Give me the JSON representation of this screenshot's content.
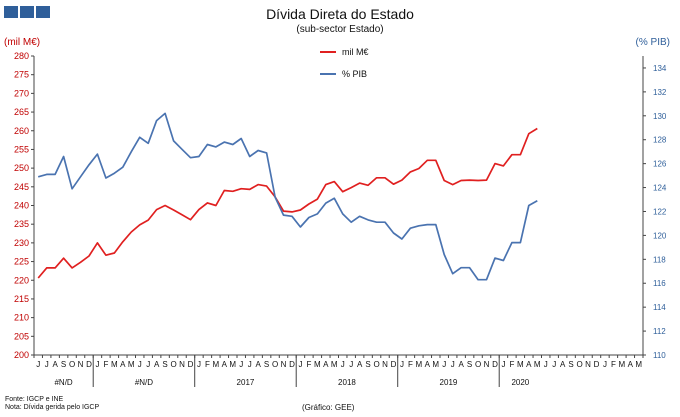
{
  "header": {
    "title": "Dívida Direta do Estado",
    "subtitle": "(sub-sector Estado)"
  },
  "logo_color": "#2f5f9a",
  "footer": {
    "source": "Fonte: IGCP e INE",
    "note": "Nota: Dívida gerida pelo IGCP",
    "credit": "(Gráfico: GEE)"
  },
  "chart_data": {
    "type": "line",
    "title": "Dívida Direta do Estado",
    "subtitle": "(sub-sector Estado)",
    "ylabel_left": "(mil M€)",
    "ylabel_right": "(% PIB)",
    "ylim_left": [
      200,
      280
    ],
    "ylim_right": [
      110,
      135
    ],
    "yticks_left": [
      "200",
      "205",
      "210",
      "215",
      "220",
      "225",
      "230",
      "235",
      "240",
      "245",
      "250",
      "255",
      "260",
      "265",
      "270",
      "275",
      "280"
    ],
    "yticks_right": [
      "110",
      "112",
      "114",
      "116",
      "118",
      "120",
      "122",
      "124",
      "126",
      "128",
      "130",
      "132",
      "134"
    ],
    "legend_position": "top-center",
    "month_labels": [
      "J",
      "J",
      "A",
      "S",
      "O",
      "N",
      "D",
      "J",
      "F",
      "M",
      "A",
      "M",
      "J",
      "J",
      "A",
      "S",
      "O",
      "N",
      "D",
      "J",
      "F",
      "M",
      "A",
      "M",
      "J",
      "J",
      "A",
      "S",
      "O",
      "N",
      "D",
      "J",
      "F",
      "M",
      "A",
      "M",
      "J",
      "J",
      "A",
      "S",
      "O",
      "N",
      "D",
      "J",
      "F",
      "M",
      "A",
      "M",
      "J",
      "J",
      "A",
      "S",
      "O",
      "N",
      "D",
      "J",
      "F",
      "M",
      "A",
      "M",
      "J",
      "J",
      "A",
      "S",
      "O",
      "N",
      "D",
      "J",
      "F",
      "M",
      "A",
      "M"
    ],
    "year_groups": [
      {
        "label": "#N/D",
        "count": 7
      },
      {
        "label": "#N/D",
        "count": 12
      },
      {
        "label": "2017",
        "count": 12
      },
      {
        "label": "2018",
        "count": 12
      },
      {
        "label": "2019",
        "count": 12
      },
      {
        "label": "2020",
        "count": 5
      }
    ],
    "series": [
      {
        "name": "mil M€",
        "axis": "left",
        "color": "#e02020",
        "values": [
          220.6,
          223.3,
          223.3,
          225.9,
          223.3,
          224.8,
          226.5,
          230.0,
          226.7,
          227.3,
          230.3,
          232.9,
          234.8,
          236.1,
          238.9,
          240.0,
          238.8,
          237.5,
          236.2,
          238.9,
          240.7,
          240.0,
          244.0,
          243.8,
          244.5,
          244.3,
          245.6,
          245.2,
          242.3,
          238.5,
          238.3,
          238.8,
          240.4,
          241.7,
          245.6,
          246.4,
          243.7,
          244.8,
          246.0,
          245.4,
          247.4,
          247.4,
          245.7,
          246.8,
          249.0,
          249.9,
          252.1,
          252.1,
          246.7,
          245.6,
          246.7,
          246.8,
          246.7,
          246.8,
          251.2,
          250.6,
          253.6,
          253.6,
          259.2,
          260.6
        ]
      },
      {
        "name": "% PIB",
        "axis": "right",
        "color": "#4a73b0",
        "values": [
          124.9,
          125.1,
          125.1,
          126.6,
          123.9,
          124.9,
          125.9,
          126.8,
          124.8,
          125.2,
          125.7,
          127.0,
          128.2,
          127.7,
          129.6,
          130.2,
          127.9,
          127.2,
          126.5,
          126.6,
          127.6,
          127.4,
          127.8,
          127.6,
          128.1,
          126.6,
          127.1,
          126.9,
          123.2,
          121.7,
          121.6,
          120.7,
          121.5,
          121.8,
          122.7,
          123.1,
          121.8,
          121.1,
          121.6,
          121.3,
          121.1,
          121.1,
          120.2,
          119.7,
          120.6,
          120.8,
          120.9,
          120.9,
          118.4,
          116.8,
          117.3,
          117.3,
          116.3,
          116.3,
          118.1,
          117.9,
          119.4,
          119.4,
          122.5,
          122.9
        ]
      }
    ]
  }
}
